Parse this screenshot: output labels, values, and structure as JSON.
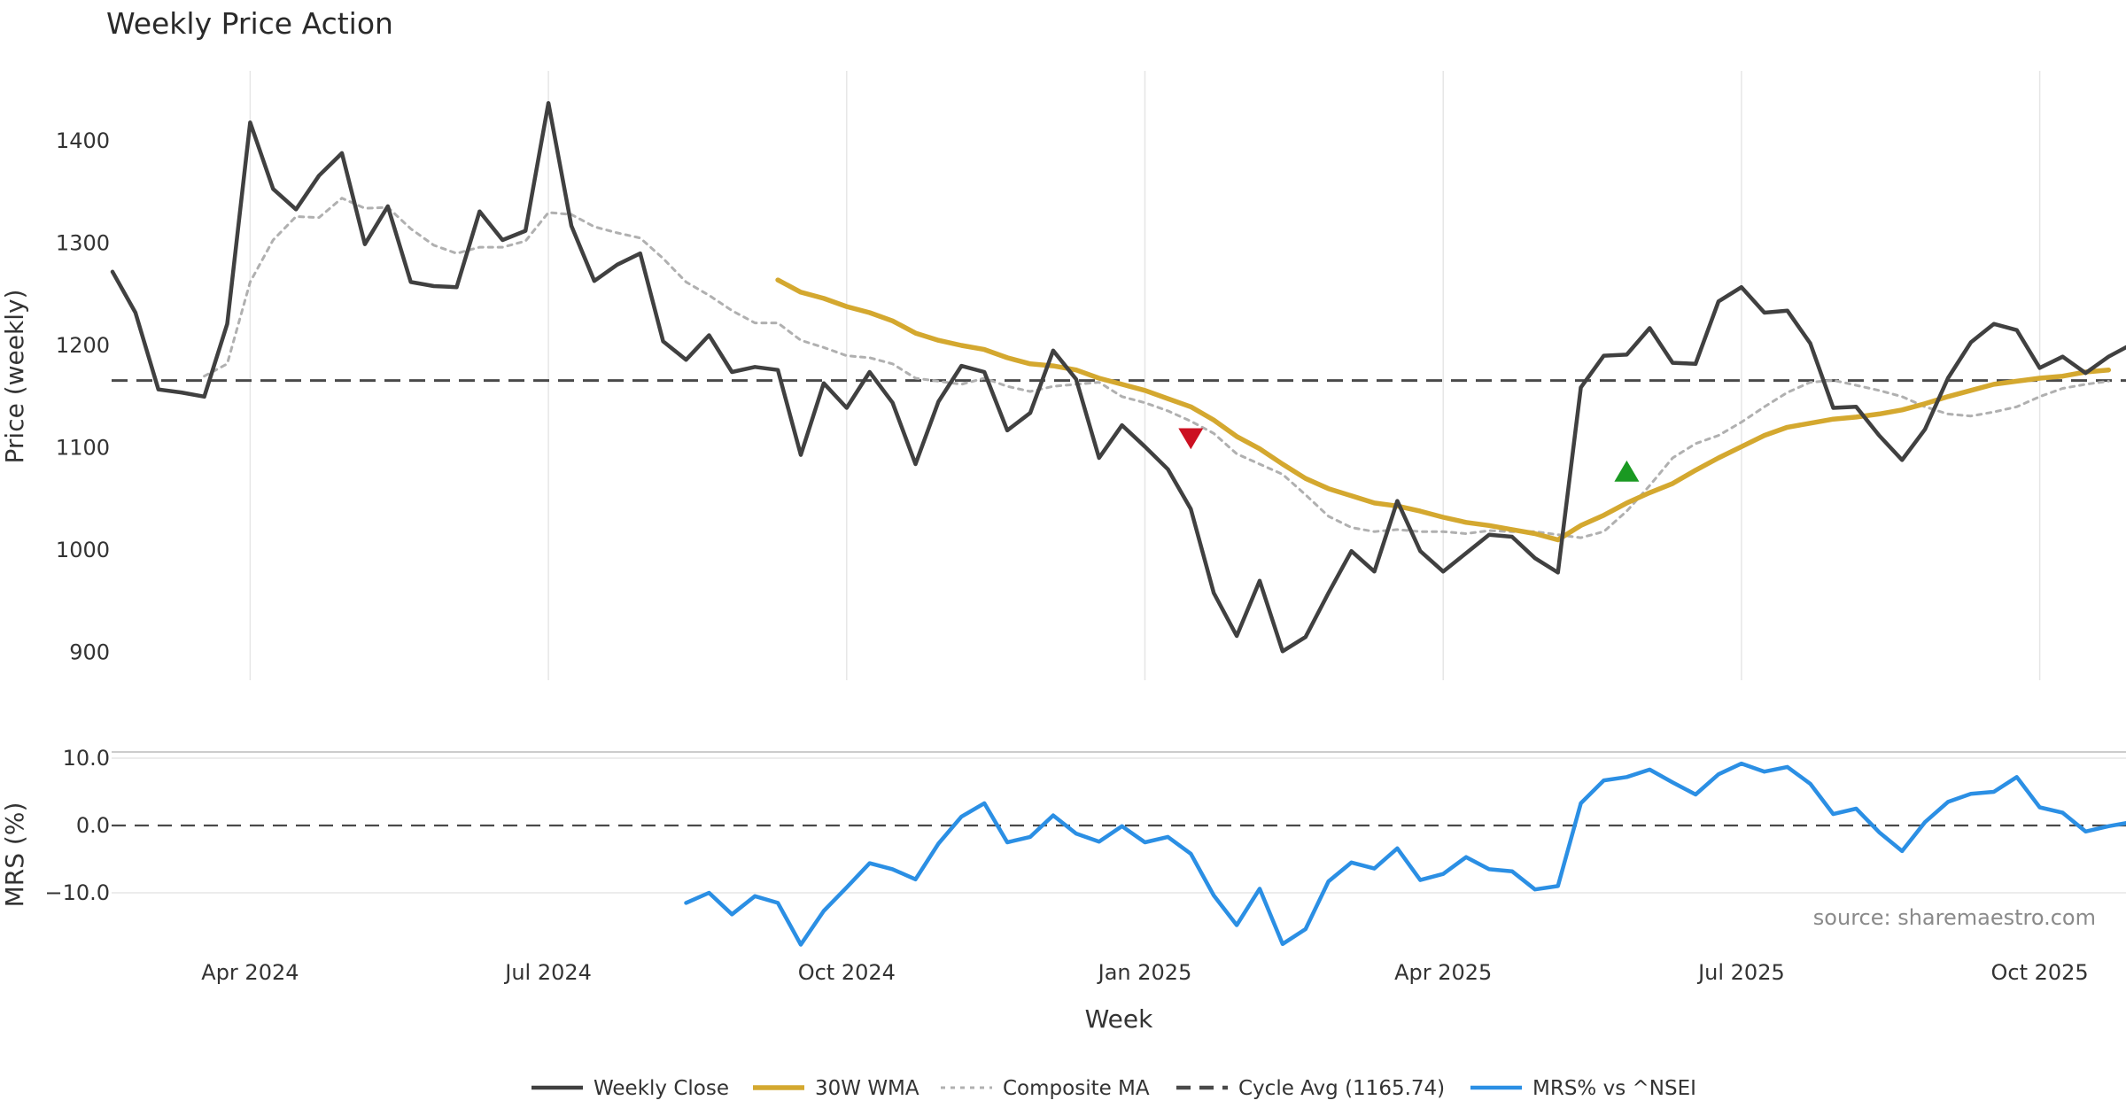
{
  "chart_data": {
    "type": "line",
    "title": "Weekly Price Action",
    "source": "source: sharemaestro.com",
    "xlabel": "Week",
    "x_ticks": [
      {
        "label": "Apr 2024",
        "week": 6
      },
      {
        "label": "Jul 2024",
        "week": 19
      },
      {
        "label": "Oct 2024",
        "week": 32
      },
      {
        "label": "Jan 2025",
        "week": 45
      },
      {
        "label": "Apr 2025",
        "week": 58
      },
      {
        "label": "Jul 2025",
        "week": 71
      },
      {
        "label": "Oct 2025",
        "week": 84
      }
    ],
    "price_panel": {
      "ylabel": "Price (weekly)",
      "ylim": [
        880,
        1470
      ],
      "yticks": [
        900,
        1000,
        1100,
        1200,
        1300,
        1400
      ],
      "cycle_avg": 1165.74,
      "series": [
        {
          "name": "Weekly Close",
          "color": "#404040",
          "start_week": 0,
          "values": [
            1272,
            1232,
            1157,
            1154,
            1150,
            1221,
            1418,
            1353,
            1333,
            1366,
            1388,
            1299,
            1336,
            1262,
            1258,
            1257,
            1331,
            1303,
            1312,
            1437,
            1317,
            1263,
            1279,
            1290,
            1204,
            1186,
            1210,
            1174,
            1179,
            1176,
            1093,
            1163,
            1139,
            1174,
            1144,
            1084,
            1145,
            1180,
            1174,
            1117,
            1134,
            1195,
            1167,
            1090,
            1122,
            1101,
            1079,
            1040,
            958,
            916,
            970,
            901,
            915,
            958,
            999,
            979,
            1048,
            999,
            979,
            997,
            1015,
            1013,
            992,
            978,
            1159,
            1190,
            1191,
            1217,
            1183,
            1182,
            1243,
            1257,
            1232,
            1234,
            1202,
            1139,
            1140,
            1112,
            1088,
            1118,
            1168,
            1203,
            1221,
            1215,
            1178,
            1189,
            1173,
            1189,
            1201
          ]
        },
        {
          "name": "30W WMA",
          "color": "#d4a82f",
          "start_week": 29,
          "values": [
            1264,
            1252,
            1246,
            1238,
            1232,
            1224,
            1212,
            1205,
            1200,
            1196,
            1188,
            1182,
            1180,
            1176,
            1168,
            1162,
            1156,
            1148,
            1140,
            1127,
            1111,
            1099,
            1084,
            1070,
            1060,
            1053,
            1046,
            1043,
            1038,
            1032,
            1027,
            1024,
            1020,
            1016,
            1010,
            1024,
            1034,
            1046,
            1056,
            1065,
            1078,
            1090,
            1101,
            1112,
            1120,
            1124,
            1128,
            1130,
            1133,
            1137,
            1143,
            1150,
            1156,
            1162,
            1165,
            1168,
            1170,
            1174,
            1176
          ]
        },
        {
          "name": "Composite MA",
          "color": "#b0b0b0",
          "start_week": 4,
          "values": [
            1170,
            1182,
            1262,
            1303,
            1326,
            1325,
            1344,
            1334,
            1335,
            1314,
            1298,
            1290,
            1296,
            1296,
            1302,
            1330,
            1328,
            1316,
            1310,
            1305,
            1285,
            1262,
            1249,
            1234,
            1222,
            1222,
            1205,
            1198,
            1190,
            1188,
            1182,
            1168,
            1165,
            1162,
            1168,
            1160,
            1155,
            1160,
            1162,
            1164,
            1150,
            1144,
            1136,
            1126,
            1114,
            1094,
            1084,
            1074,
            1054,
            1033,
            1022,
            1018,
            1020,
            1018,
            1018,
            1016,
            1019,
            1018,
            1018,
            1015,
            1012,
            1018,
            1038,
            1063,
            1090,
            1104,
            1112,
            1125,
            1140,
            1154,
            1164,
            1166,
            1161,
            1156,
            1150,
            1140,
            1133,
            1131,
            1135,
            1140,
            1150,
            1158,
            1162,
            1165
          ]
        }
      ],
      "markers": [
        {
          "name": "sell-signal",
          "type": "down",
          "week": 47,
          "value": 1110,
          "color": "#cc1122"
        },
        {
          "name": "buy-signal",
          "type": "up",
          "week": 66,
          "value": 1076,
          "color": "#1a9922"
        }
      ]
    },
    "mrs_panel": {
      "ylabel": "MRS (%)",
      "ylim": [
        -18.5,
        11
      ],
      "yticks": [
        -10,
        0,
        10
      ],
      "ytick_labels": [
        "−10.0",
        "0.0",
        "10.0"
      ],
      "zero_line": 0,
      "series": [
        {
          "name": "MRS% vs ^NSEI",
          "color": "#2b8fe4",
          "start_week": 25,
          "values": [
            -11.5,
            -10.0,
            -13.2,
            -10.5,
            -11.5,
            -17.7,
            -12.7,
            -9.2,
            -5.6,
            -6.5,
            -8.0,
            -2.7,
            1.3,
            3.3,
            -2.5,
            -1.7,
            1.5,
            -1.2,
            -2.4,
            -0.1,
            -2.5,
            -1.7,
            -4.2,
            -10.4,
            -14.8,
            -9.4,
            -17.6,
            -15.4,
            -8.3,
            -5.5,
            -6.4,
            -3.4,
            -8.1,
            -7.2,
            -4.7,
            -6.5,
            -6.8,
            -9.5,
            -9.0,
            3.3,
            6.7,
            7.2,
            8.3,
            6.4,
            4.6,
            7.6,
            9.2,
            8.0,
            8.7,
            6.2,
            1.7,
            2.5,
            -1.0,
            -3.8,
            0.5,
            3.5,
            4.7,
            5.0,
            7.2,
            2.7,
            1.9,
            -0.9,
            -0.1,
            0.5
          ]
        }
      ]
    },
    "legend": [
      {
        "label": "Weekly Close",
        "style": "solid",
        "color": "#404040"
      },
      {
        "label": "30W WMA",
        "style": "solid",
        "color": "#d4a82f"
      },
      {
        "label": "Composite MA",
        "style": "dotted",
        "color": "#b0b0b0"
      },
      {
        "label": "Cycle Avg (1165.74)",
        "style": "dashed",
        "color": "#4a4a4a"
      },
      {
        "label": "MRS% vs ^NSEI",
        "style": "solid",
        "color": "#2b8fe4"
      }
    ]
  }
}
